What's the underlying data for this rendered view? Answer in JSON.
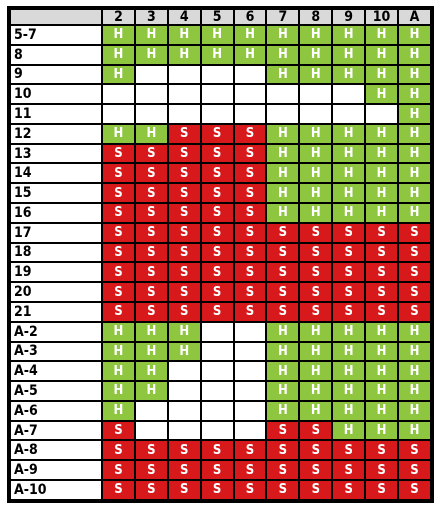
{
  "table": {
    "columns": [
      "2",
      "3",
      "4",
      "5",
      "6",
      "7",
      "8",
      "9",
      "10",
      "A"
    ],
    "rows": [
      {
        "label": "5-7",
        "cells": [
          "H",
          "H",
          "H",
          "H",
          "H",
          "H",
          "H",
          "H",
          "H",
          "H"
        ]
      },
      {
        "label": "8",
        "cells": [
          "H",
          "H",
          "H",
          "H",
          "H",
          "H",
          "H",
          "H",
          "H",
          "H"
        ]
      },
      {
        "label": "9",
        "cells": [
          "H",
          "",
          "",
          "",
          "",
          "H",
          "H",
          "H",
          "H",
          "H"
        ]
      },
      {
        "label": "10",
        "cells": [
          "",
          "",
          "",
          "",
          "",
          "",
          "",
          "",
          "H",
          "H"
        ]
      },
      {
        "label": "11",
        "cells": [
          "",
          "",
          "",
          "",
          "",
          "",
          "",
          "",
          "",
          "H"
        ]
      },
      {
        "label": "12",
        "cells": [
          "H",
          "H",
          "S",
          "S",
          "S",
          "H",
          "H",
          "H",
          "H",
          "H"
        ]
      },
      {
        "label": "13",
        "cells": [
          "S",
          "S",
          "S",
          "S",
          "S",
          "H",
          "H",
          "H",
          "H",
          "H"
        ]
      },
      {
        "label": "14",
        "cells": [
          "S",
          "S",
          "S",
          "S",
          "S",
          "H",
          "H",
          "H",
          "H",
          "H"
        ]
      },
      {
        "label": "15",
        "cells": [
          "S",
          "S",
          "S",
          "S",
          "S",
          "H",
          "H",
          "H",
          "H",
          "H"
        ]
      },
      {
        "label": "16",
        "cells": [
          "S",
          "S",
          "S",
          "S",
          "S",
          "H",
          "H",
          "H",
          "H",
          "H"
        ]
      },
      {
        "label": "17",
        "cells": [
          "S",
          "S",
          "S",
          "S",
          "S",
          "S",
          "S",
          "S",
          "S",
          "S"
        ]
      },
      {
        "label": "18",
        "cells": [
          "S",
          "S",
          "S",
          "S",
          "S",
          "S",
          "S",
          "S",
          "S",
          "S"
        ]
      },
      {
        "label": "19",
        "cells": [
          "S",
          "S",
          "S",
          "S",
          "S",
          "S",
          "S",
          "S",
          "S",
          "S"
        ]
      },
      {
        "label": "20",
        "cells": [
          "S",
          "S",
          "S",
          "S",
          "S",
          "S",
          "S",
          "S",
          "S",
          "S"
        ]
      },
      {
        "label": "21",
        "cells": [
          "S",
          "S",
          "S",
          "S",
          "S",
          "S",
          "S",
          "S",
          "S",
          "S"
        ]
      },
      {
        "label": "A-2",
        "cells": [
          "H",
          "H",
          "H",
          "",
          "",
          "H",
          "H",
          "H",
          "H",
          "H"
        ]
      },
      {
        "label": "A-3",
        "cells": [
          "H",
          "H",
          "H",
          "",
          "",
          "H",
          "H",
          "H",
          "H",
          "H"
        ]
      },
      {
        "label": "A-4",
        "cells": [
          "H",
          "H",
          "",
          "",
          "",
          "H",
          "H",
          "H",
          "H",
          "H"
        ]
      },
      {
        "label": "A-5",
        "cells": [
          "H",
          "H",
          "",
          "",
          "",
          "H",
          "H",
          "H",
          "H",
          "H"
        ]
      },
      {
        "label": "A-6",
        "cells": [
          "H",
          "",
          "",
          "",
          "",
          "H",
          "H",
          "H",
          "H",
          "H"
        ]
      },
      {
        "label": "A-7",
        "cells": [
          "S",
          "",
          "",
          "",
          "",
          "S",
          "S",
          "H",
          "H",
          "H"
        ]
      },
      {
        "label": "A-8",
        "cells": [
          "S",
          "S",
          "S",
          "S",
          "S",
          "S",
          "S",
          "S",
          "S",
          "S"
        ]
      },
      {
        "label": "A-9",
        "cells": [
          "S",
          "S",
          "S",
          "S",
          "S",
          "S",
          "S",
          "S",
          "S",
          "S"
        ]
      },
      {
        "label": "A-10",
        "cells": [
          "S",
          "S",
          "S",
          "S",
          "S",
          "S",
          "S",
          "S",
          "S",
          "S"
        ]
      }
    ]
  },
  "colors": {
    "hit": "#8ec63f",
    "stand": "#d7191c",
    "blank": "#ffffff",
    "header": "#d9d9d9",
    "grid": "#000000"
  }
}
